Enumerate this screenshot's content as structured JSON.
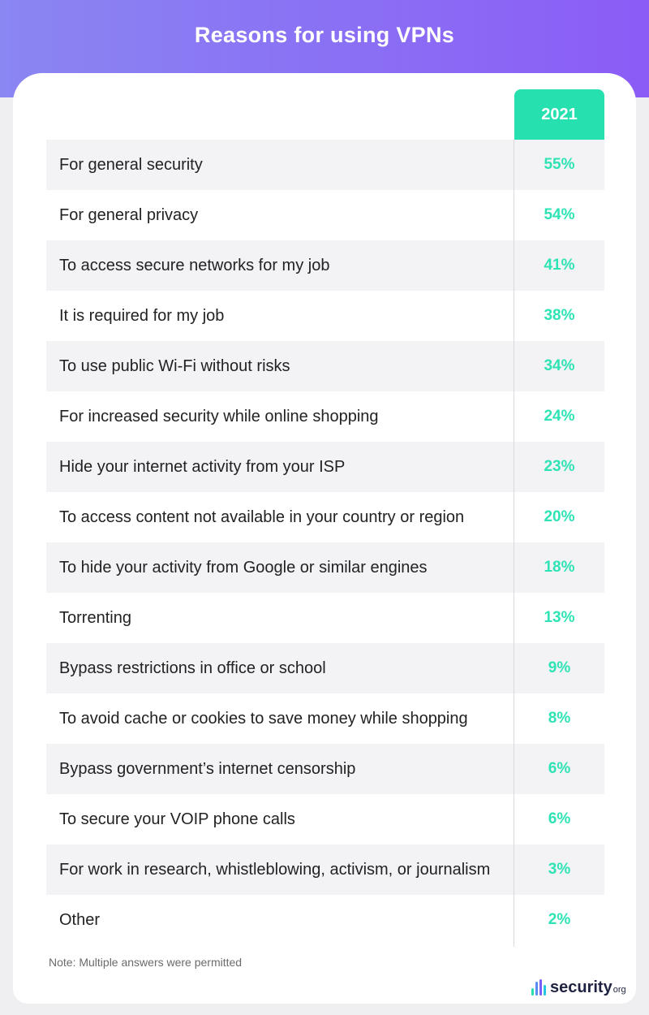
{
  "colors": {
    "accent": "#26e0b0",
    "header_start": "#8a86f2",
    "header_end": "#8b5cf6",
    "value_text": "#2ee3b4"
  },
  "chart_data": {
    "type": "table",
    "title": "Reasons for using VPNs",
    "column_header": "2021",
    "rows": [
      {
        "label": "For general security",
        "value": "55%"
      },
      {
        "label": "For general privacy",
        "value": "54%"
      },
      {
        "label": "To access secure networks for my job",
        "value": "41%"
      },
      {
        "label": "It is required for my job",
        "value": "38%"
      },
      {
        "label": "To use public Wi-Fi without risks",
        "value": "34%"
      },
      {
        "label": "For increased security while online shopping",
        "value": "24%"
      },
      {
        "label": "Hide your internet activity from your ISP",
        "value": "23%"
      },
      {
        "label": "To access content not available in your country or region",
        "value": "20%"
      },
      {
        "label": "To hide your activity from Google or similar engines",
        "value": "18%"
      },
      {
        "label": "Torrenting",
        "value": "13%"
      },
      {
        "label": "Bypass restrictions in office or school",
        "value": "9%"
      },
      {
        "label": "To avoid cache or cookies to save money while shopping",
        "value": "8%"
      },
      {
        "label": "Bypass government’s internet censorship",
        "value": "6%"
      },
      {
        "label": "To secure your VOIP phone calls",
        "value": "6%"
      },
      {
        "label": "For work in research, whistleblowing, activism, or journalism",
        "value": "3%"
      },
      {
        "label": "Other",
        "value": "2%"
      }
    ],
    "note": "Note: Multiple answers were permitted"
  },
  "brand": {
    "name": "security",
    "suffix": "org",
    "icon": "bars-logo-icon"
  }
}
